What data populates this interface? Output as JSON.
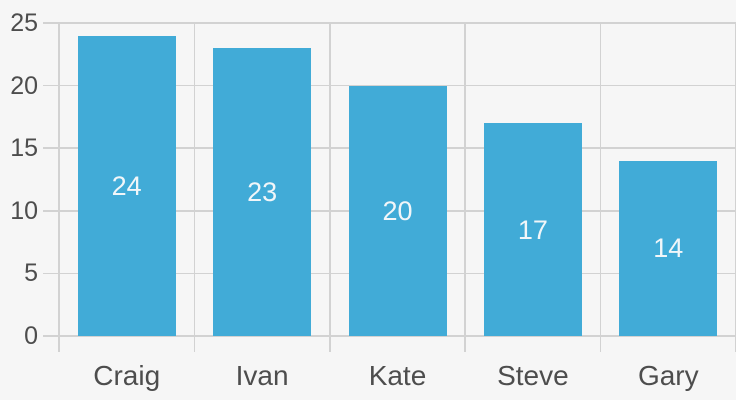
{
  "chart_data": {
    "type": "bar",
    "categories": [
      "Craig",
      "Ivan",
      "Kate",
      "Steve",
      "Gary"
    ],
    "values": [
      24,
      23,
      20,
      17,
      14
    ],
    "title": "",
    "xlabel": "",
    "ylabel": "",
    "ylim": [
      0,
      25
    ],
    "ytick_step": 5,
    "ytick_labels": [
      "0",
      "5",
      "10",
      "15",
      "20",
      "25"
    ],
    "grid": true,
    "legend_position": "none",
    "show_value_labels": true,
    "colors": {
      "background": "#f6f6f6",
      "gridline": "#d2d2d2",
      "bar_fill": "#41abd7",
      "bar_value_label": "#f1f6f9",
      "axis_text": "#4d4d4d"
    }
  }
}
